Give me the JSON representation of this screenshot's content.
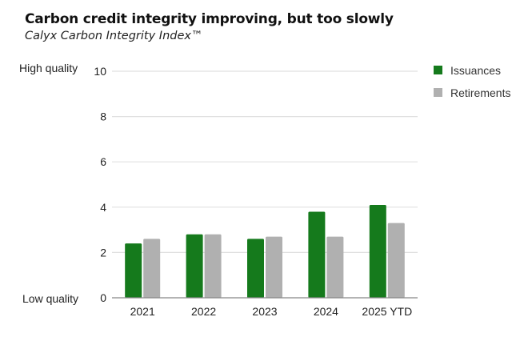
{
  "chart_data": {
    "type": "bar",
    "title": "Carbon credit integrity improving, but too slowly",
    "subtitle": "Calyx Carbon Integrity Index™",
    "categories": [
      "2021",
      "2022",
      "2023",
      "2024",
      "2025 YTD"
    ],
    "series": [
      {
        "name": "Issuances",
        "color": "#157a1c",
        "values": [
          2.4,
          2.8,
          2.6,
          3.8,
          4.1
        ]
      },
      {
        "name": "Retirements",
        "color": "#b0b0b0",
        "values": [
          2.6,
          2.8,
          2.7,
          2.7,
          3.3
        ]
      }
    ],
    "ylim": [
      0,
      10
    ],
    "yticks": [
      "0",
      "2",
      "4",
      "6",
      "8",
      "10"
    ],
    "y_annotations": {
      "top": "High quality",
      "bottom": "Low quality"
    },
    "xlabel": "",
    "ylabel": "",
    "grid": true,
    "legend_position": "right"
  }
}
